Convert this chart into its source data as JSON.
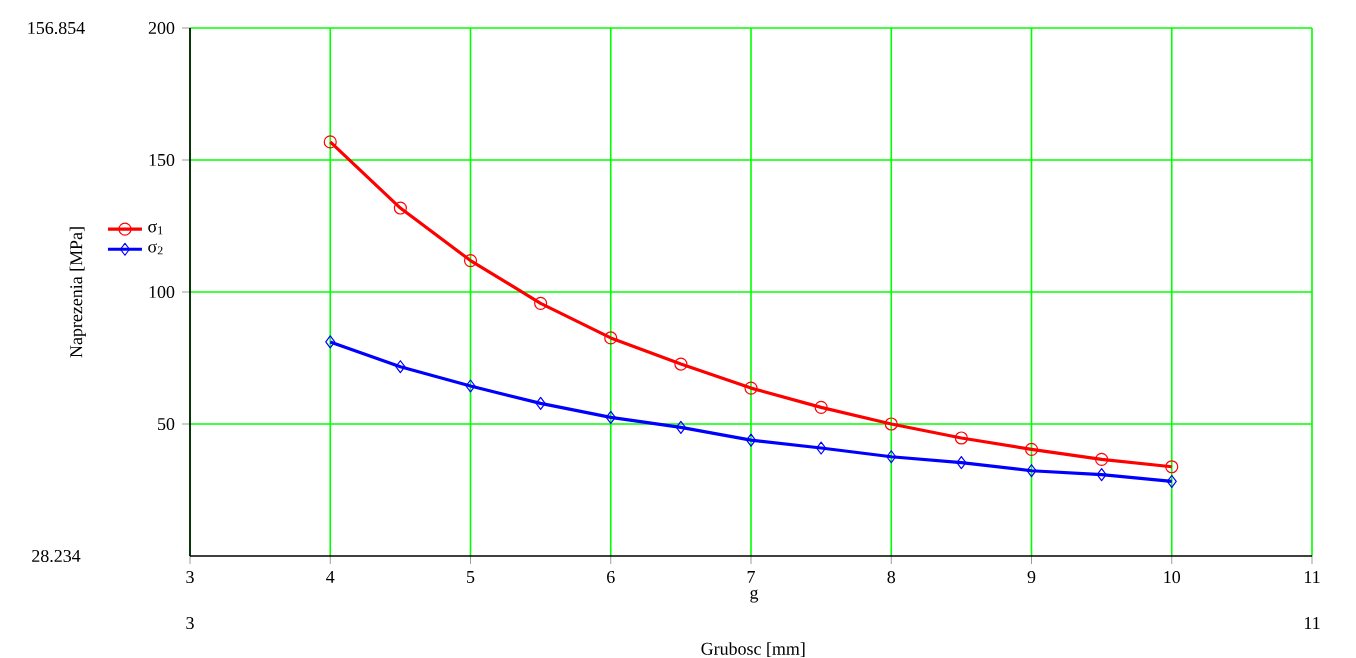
{
  "chart_data": {
    "type": "line",
    "xlabel": "Grubosc [mm]",
    "ylabel": "Naprezenia [MPa]",
    "x": [
      4,
      4.5,
      5,
      5.5,
      6,
      6.5,
      7,
      7.5,
      8,
      8.5,
      9,
      9.5,
      10
    ],
    "series": [
      {
        "name": "σ$_{1}$",
        "color": "#ff0000",
        "marker": "circle",
        "values": [
          156.854,
          131.8,
          111.9,
          95.7,
          82.6,
          72.7,
          63.6,
          56.3,
          50.0,
          44.7,
          40.4,
          36.6,
          33.8
        ]
      },
      {
        "name": "σ$_{2}$",
        "color": "#0000ff",
        "marker": "diamond",
        "values": [
          81.1,
          71.7,
          64.4,
          57.8,
          52.5,
          48.7,
          43.9,
          40.9,
          37.6,
          35.4,
          32.3,
          30.8,
          28.234
        ]
      }
    ],
    "xlim": [
      3,
      11
    ],
    "xticks": [
      3,
      4,
      5,
      6,
      7,
      8,
      9,
      10,
      11
    ],
    "ylim": [
      0,
      200
    ],
    "yticks": [
      50,
      100,
      150,
      200
    ],
    "grid": true,
    "legend": "left",
    "line_style": "solid",
    "annotations": [
      "156.854",
      "28.234",
      "3",
      "11",
      "g"
    ]
  }
}
